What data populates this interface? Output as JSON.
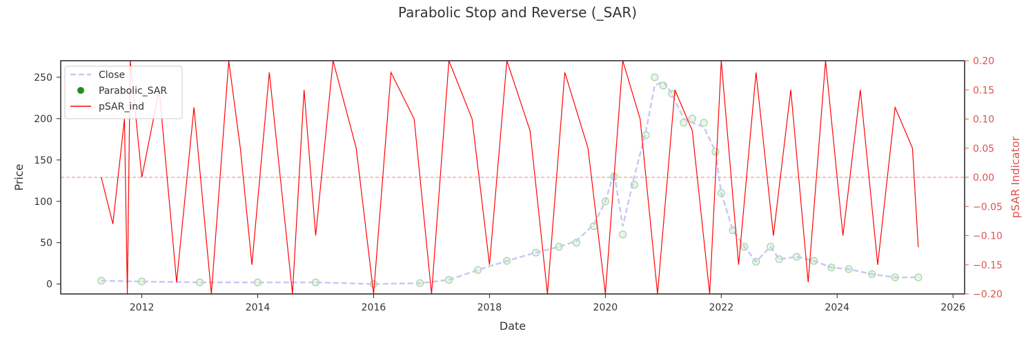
{
  "chart_data": {
    "type": "line",
    "title": "Parabolic Stop and Reverse (_SAR)",
    "xlabel": "Date",
    "ylabel": "Price",
    "y2label": "pSAR Indicator",
    "xlim": [
      2010.6,
      2026.2
    ],
    "ylim": [
      -12,
      270
    ],
    "y2lim": [
      -0.2,
      0.2
    ],
    "x_ticks": [
      2012,
      2014,
      2016,
      2018,
      2020,
      2022,
      2024,
      2026
    ],
    "y_ticks": [
      0,
      50,
      100,
      150,
      200,
      250
    ],
    "y2_ticks": [
      -0.2,
      -0.15,
      -0.1,
      -0.05,
      0.0,
      0.05,
      0.1,
      0.15,
      0.2
    ],
    "y2_tick_labels": [
      "−0.20",
      "−0.15",
      "−0.10",
      "−0.05",
      "0.00",
      "0.05",
      "0.10",
      "0.15",
      "0.20"
    ],
    "zero_line": 0.0,
    "legend_position": "upper-left",
    "colors": {
      "close": "#c8c8f5",
      "sar": "#228b22",
      "sar_fill": "#e8f5e8",
      "psar_ind": "#ff0000",
      "zero_line": "#f08080",
      "right_axis": "#d9534f"
    },
    "series": [
      {
        "name": "Close",
        "style": "dashed",
        "x": [
          2011.3,
          2012.0,
          2013.0,
          2014.0,
          2015.0,
          2016.0,
          2016.8,
          2017.3,
          2017.8,
          2018.3,
          2018.8,
          2019.2,
          2019.5,
          2019.8,
          2020.0,
          2020.15,
          2020.3,
          2020.5,
          2020.7,
          2020.85,
          2021.0,
          2021.15,
          2021.35,
          2021.5,
          2021.7,
          2021.9,
          2022.0,
          2022.2,
          2022.4,
          2022.6,
          2022.85,
          2023.0,
          2023.3,
          2023.6,
          2023.9,
          2024.2,
          2024.6,
          2025.0,
          2025.4
        ],
        "values": [
          4,
          3,
          2,
          2,
          2,
          0,
          1,
          5,
          17,
          28,
          38,
          45,
          52,
          72,
          100,
          135,
          70,
          130,
          185,
          240,
          245,
          230,
          200,
          195,
          190,
          160,
          110,
          65,
          45,
          27,
          45,
          30,
          33,
          28,
          20,
          18,
          12,
          8,
          8
        ]
      },
      {
        "name": "Parabolic_SAR",
        "x": [
          2011.3,
          2012.0,
          2013.0,
          2014.0,
          2015.0,
          2016.0,
          2016.8,
          2017.3,
          2017.8,
          2018.3,
          2018.8,
          2019.2,
          2019.5,
          2019.8,
          2020.0,
          2020.15,
          2020.3,
          2020.5,
          2020.7,
          2020.85,
          2021.0,
          2021.15,
          2021.35,
          2021.5,
          2021.7,
          2021.9,
          2022.0,
          2022.2,
          2022.4,
          2022.6,
          2022.85,
          2023.0,
          2023.3,
          2023.6,
          2023.9,
          2024.2,
          2024.6,
          2025.0,
          2025.4
        ],
        "values": [
          4,
          3,
          2,
          2,
          2,
          0,
          1,
          5,
          17,
          28,
          38,
          45,
          50,
          70,
          100,
          130,
          60,
          120,
          180,
          250,
          240,
          230,
          195,
          200,
          195,
          160,
          110,
          65,
          45,
          27,
          45,
          30,
          33,
          28,
          20,
          18,
          12,
          8,
          8
        ]
      },
      {
        "name": "pSAR_ind",
        "axis": "right",
        "x": [
          2011.3,
          2011.5,
          2011.7,
          2011.75,
          2011.8,
          2012.0,
          2012.3,
          2012.6,
          2012.9,
          2013.2,
          2013.5,
          2013.7,
          2013.9,
          2014.2,
          2014.6,
          2014.8,
          2015.0,
          2015.3,
          2015.7,
          2016.0,
          2016.3,
          2016.7,
          2017.0,
          2017.3,
          2017.7,
          2018.0,
          2018.3,
          2018.7,
          2019.0,
          2019.3,
          2019.7,
          2020.0,
          2020.3,
          2020.6,
          2020.9,
          2021.2,
          2021.5,
          2021.8,
          2022.0,
          2022.3,
          2022.6,
          2022.9,
          2023.2,
          2023.5,
          2023.8,
          2024.1,
          2024.4,
          2024.7,
          2025.0,
          2025.3,
          2025.4
        ],
        "values": [
          0.0,
          -0.08,
          0.1,
          -0.2,
          0.2,
          0.0,
          0.15,
          -0.18,
          0.12,
          -0.2,
          0.2,
          0.05,
          -0.15,
          0.18,
          -0.2,
          0.15,
          -0.1,
          0.2,
          0.05,
          -0.2,
          0.18,
          0.1,
          -0.2,
          0.2,
          0.1,
          -0.15,
          0.2,
          0.08,
          -0.2,
          0.18,
          0.05,
          -0.2,
          0.2,
          0.1,
          -0.2,
          0.15,
          0.08,
          -0.2,
          0.2,
          -0.15,
          0.18,
          -0.1,
          0.15,
          -0.18,
          0.2,
          -0.1,
          0.15,
          -0.15,
          0.12,
          0.05,
          -0.12
        ]
      }
    ]
  }
}
